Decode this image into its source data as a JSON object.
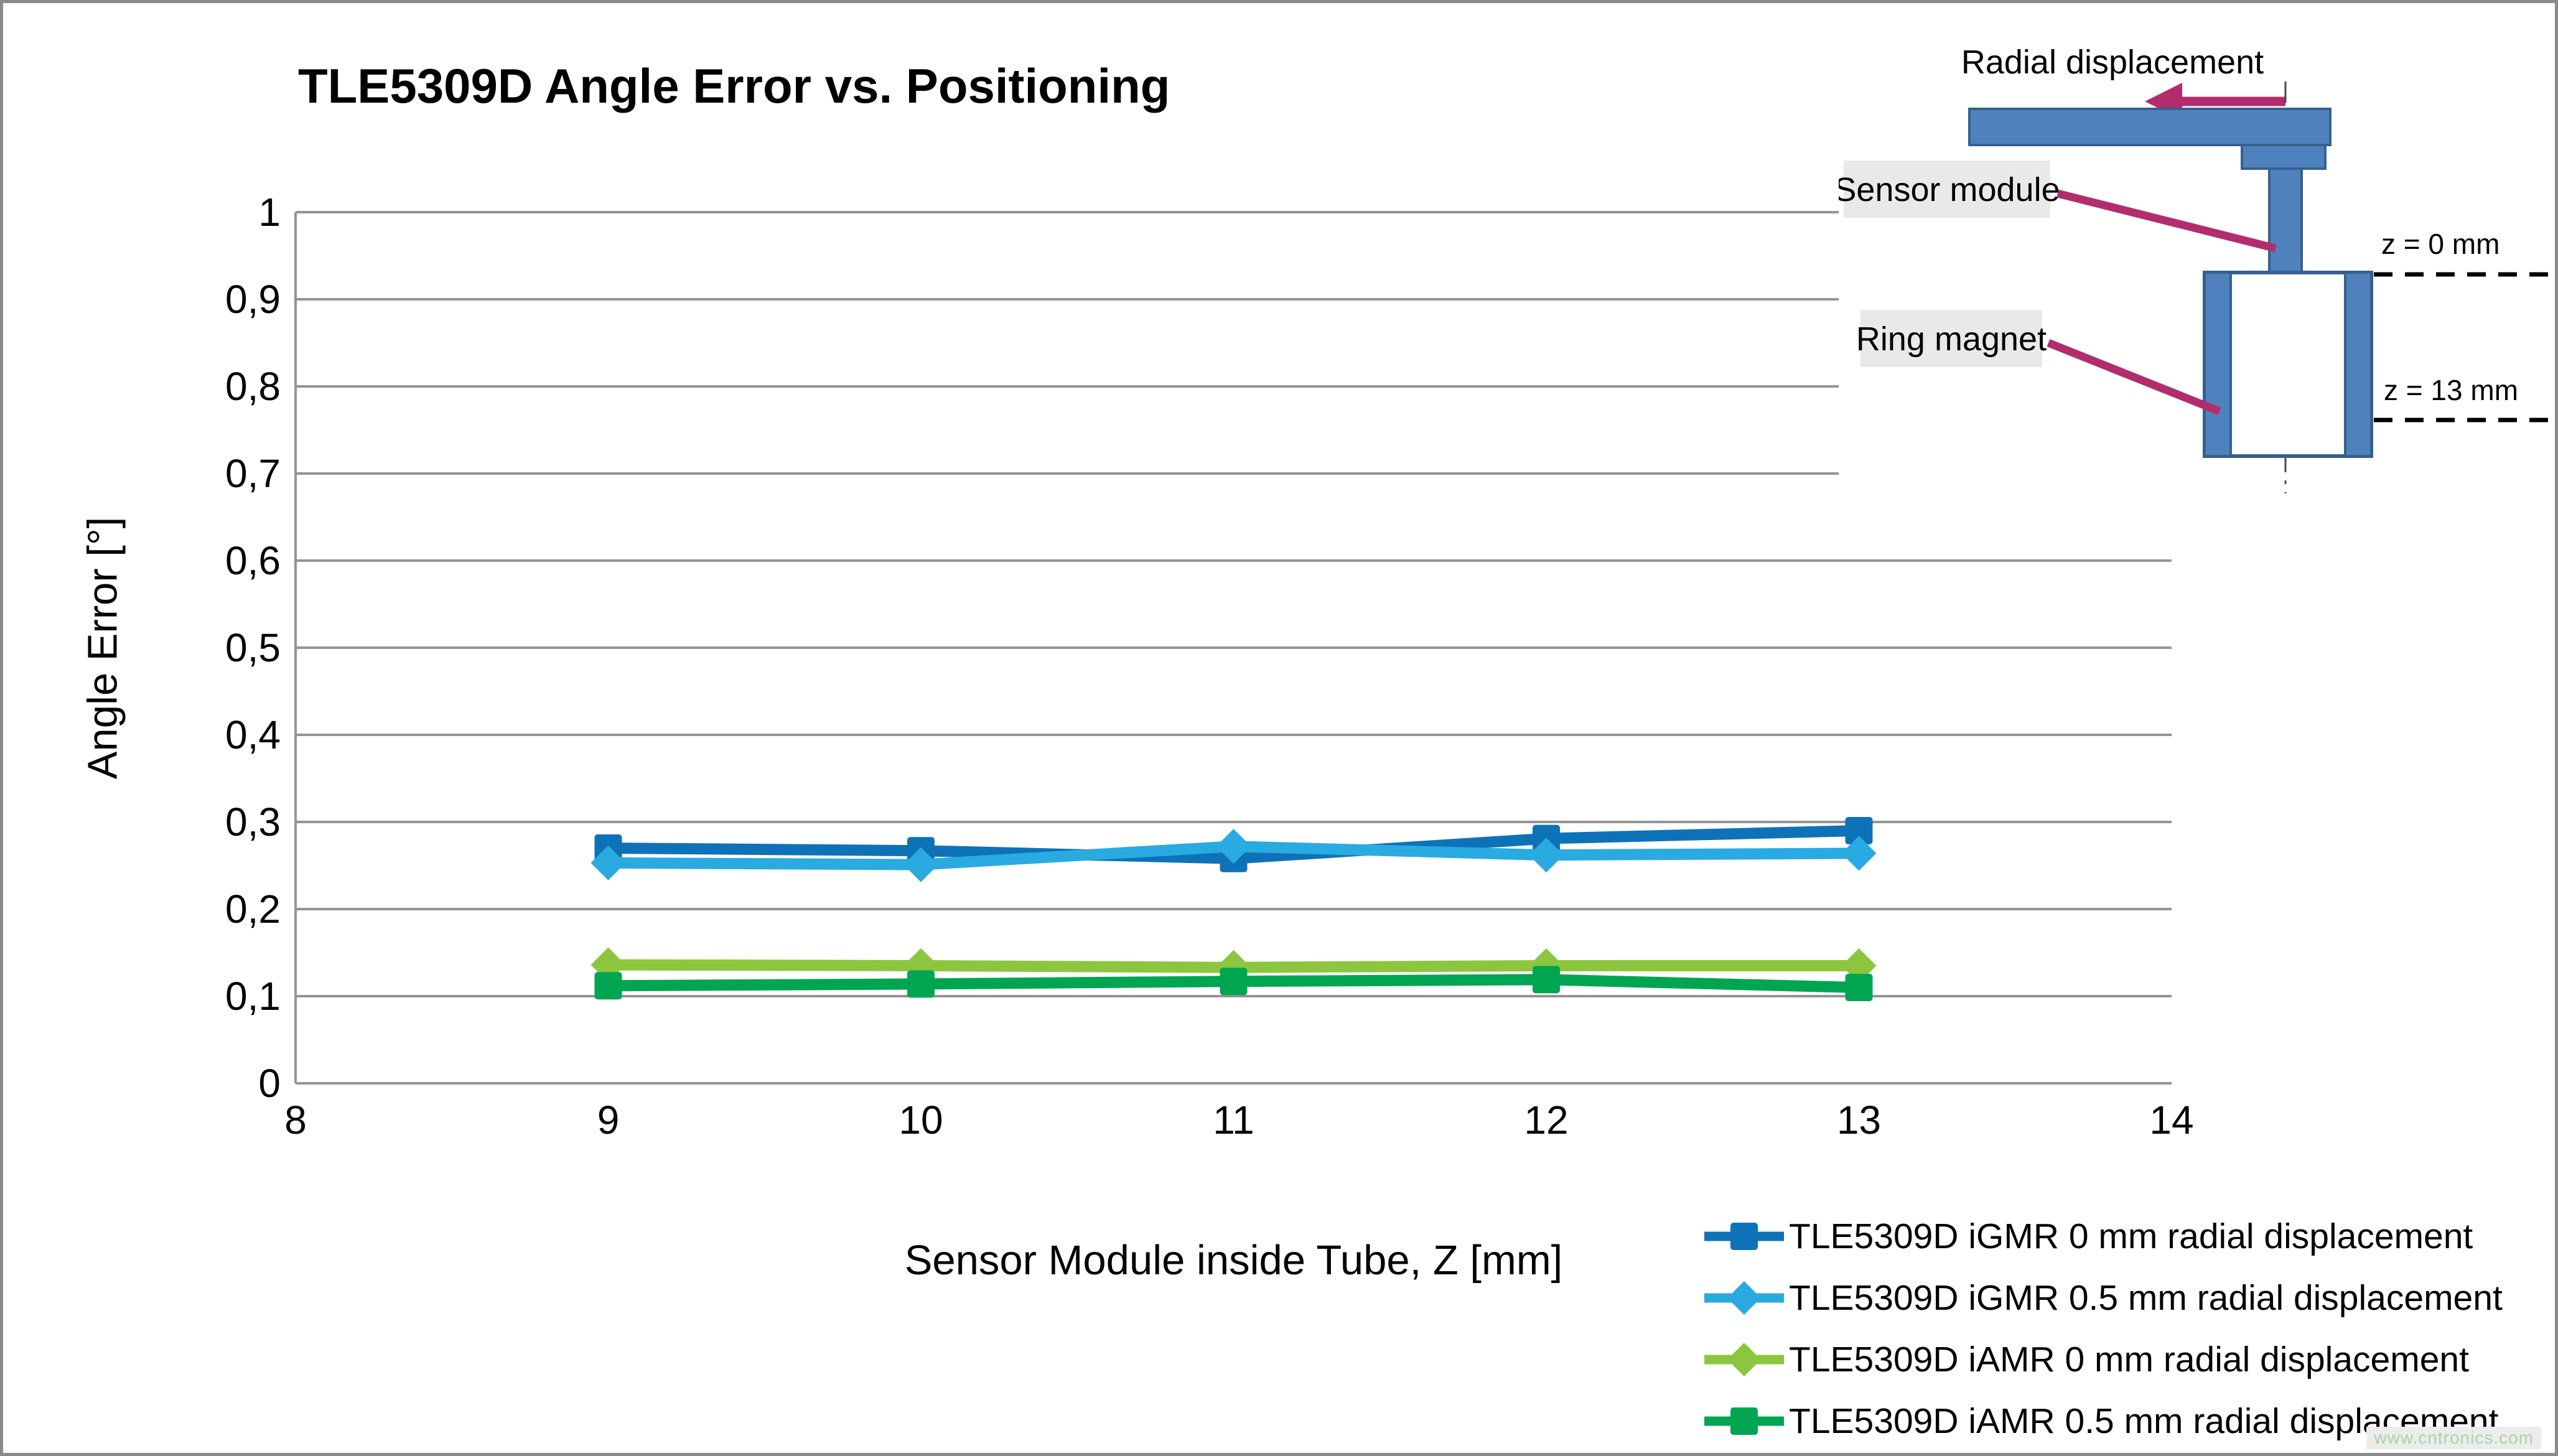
{
  "page": {
    "title": "TLE5309D Angle Error vs. Positioning",
    "watermark": "www.cntronics.com"
  },
  "chart_data": {
    "type": "line",
    "title": "TLE5309D Angle Error vs. Positioning",
    "xlabel": "Sensor Module inside Tube, Z [mm]",
    "ylabel": "Angle Error [°]",
    "xlim": [
      8,
      14
    ],
    "ylim": [
      0,
      1
    ],
    "grid": "horizontal",
    "legend_position": "bottom-right",
    "x_ticks": {
      "values": [
        8,
        9,
        10,
        11,
        12,
        13,
        14
      ],
      "labels": [
        "8",
        "9",
        "10",
        "11",
        "12",
        "13",
        "14"
      ]
    },
    "y_ticks": {
      "values": [
        1,
        0.9,
        0.8,
        0.7,
        0.6,
        0.5,
        0.4,
        0.3,
        0.2,
        0.1,
        0
      ],
      "labels": [
        "1",
        "0,9",
        "0,8",
        "0,7",
        "0,6",
        "0,5",
        "0,4",
        "0,3",
        "0,2",
        "0,1",
        "0"
      ]
    },
    "x": [
      9,
      10,
      11,
      12,
      13
    ],
    "series": [
      {
        "name": "TLE5309D iGMR 0 mm radial displacement",
        "color": "#0e72b8",
        "marker": "square",
        "values": [
          0.27,
          0.267,
          0.258,
          0.281,
          0.29
        ]
      },
      {
        "name": "TLE5309D iGMR 0.5 mm radial displacement",
        "color": "#29aae1",
        "marker": "diamond",
        "values": [
          0.253,
          0.251,
          0.272,
          0.262,
          0.264
        ]
      },
      {
        "name": "TLE5309D iAMR 0 mm radial displacement",
        "color": "#8cc63e",
        "marker": "diamond",
        "values": [
          0.136,
          0.135,
          0.133,
          0.135,
          0.135
        ]
      },
      {
        "name": "TLE5309D iAMR 0.5 mm radial displacement",
        "color": "#00a551",
        "marker": "square",
        "values": [
          0.112,
          0.114,
          0.117,
          0.119,
          0.11
        ]
      }
    ],
    "colors": {
      "gridline": "#949494",
      "axis_line": "#949494"
    }
  },
  "diagram": {
    "radial_label": "Radial displacement",
    "sensor_label": "Sensor module",
    "magnet_label": "Ring magnet",
    "z_top": "z = 0 mm",
    "z_bottom": "z = 13 mm",
    "colors": {
      "part_fill": "#4f81bd",
      "part_stroke": "#36618e",
      "arrow": "#b12d6e",
      "label_bg": "#e9e9e9"
    }
  }
}
